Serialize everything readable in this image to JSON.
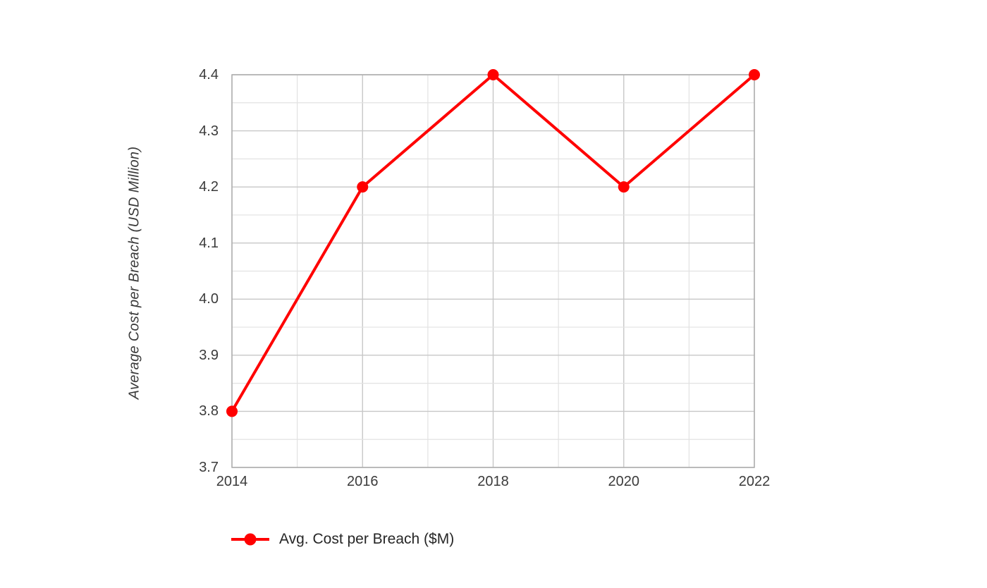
{
  "chart_data": {
    "type": "line",
    "x": [
      2014,
      2016,
      2018,
      2020,
      2022
    ],
    "series": [
      {
        "name": "Avg. Cost per Breach ($M)",
        "values": [
          3.8,
          4.2,
          4.4,
          4.2,
          4.4
        ],
        "color": "#ff0000",
        "marker": "circle"
      }
    ],
    "title": "",
    "xlabel": "",
    "ylabel": "Average Cost per Breach (USD Million)",
    "ylim": [
      3.7,
      4.4
    ],
    "xlim": [
      2014,
      2022
    ],
    "y_major_step": 0.1,
    "y_minor_step": 0.05,
    "x_major_step": 2,
    "x_minor_step": 1,
    "y_tick_labels": [
      "3.7",
      "3.8",
      "3.9",
      "4.0",
      "4.1",
      "4.2",
      "4.3",
      "4.4"
    ],
    "x_tick_labels": [
      "2014",
      "2016",
      "2018",
      "2020",
      "2022"
    ],
    "grid": "major+minor",
    "plot_border": true,
    "legend_position": "bottom-left",
    "legend": [
      "Avg. Cost per Breach ($M)"
    ]
  },
  "labels": {
    "y_axis_title": "Average Cost per Breach (USD Million)",
    "legend_label": "Avg. Cost per Breach ($M)"
  },
  "colors": {
    "series_red": "#ff0000",
    "major_grid": "#c7c7c7",
    "minor_grid": "#e2e2e2",
    "plot_border": "#adadad",
    "tick_text": "#3b3b3b",
    "legend_text": "#262626",
    "background": "#ffffff"
  }
}
